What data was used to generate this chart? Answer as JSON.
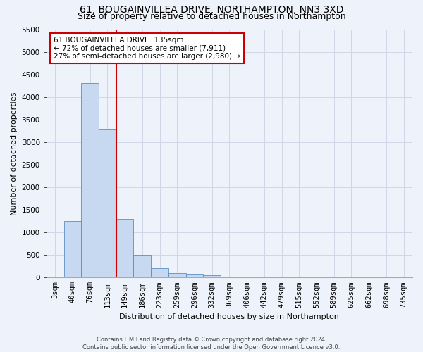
{
  "title": "61, BOUGAINVILLEA DRIVE, NORTHAMPTON, NN3 3XD",
  "subtitle": "Size of property relative to detached houses in Northampton",
  "xlabel": "Distribution of detached houses by size in Northampton",
  "ylabel": "Number of detached properties",
  "footer_line1": "Contains HM Land Registry data © Crown copyright and database right 2024.",
  "footer_line2": "Contains public sector information licensed under the Open Government Licence v3.0.",
  "bin_labels": [
    "3sqm",
    "40sqm",
    "76sqm",
    "113sqm",
    "149sqm",
    "186sqm",
    "223sqm",
    "259sqm",
    "296sqm",
    "332sqm",
    "369sqm",
    "406sqm",
    "442sqm",
    "479sqm",
    "515sqm",
    "552sqm",
    "589sqm",
    "625sqm",
    "662sqm",
    "698sqm",
    "735sqm"
  ],
  "bar_values": [
    0,
    1250,
    4300,
    3300,
    1300,
    500,
    200,
    100,
    75,
    50,
    0,
    0,
    0,
    0,
    0,
    0,
    0,
    0,
    0,
    0,
    0
  ],
  "bar_color": "#c6d9f0",
  "bar_edge_color": "#5b8dc8",
  "red_line_color": "#cc0000",
  "annotation_line1": "61 BOUGAINVILLEA DRIVE: 135sqm",
  "annotation_line2": "← 72% of detached houses are smaller (7,911)",
  "annotation_line3": "27% of semi-detached houses are larger (2,980) →",
  "annotation_box_color": "#ffffff",
  "annotation_box_edge": "#cc0000",
  "ylim_max": 5500,
  "yticks": [
    0,
    500,
    1000,
    1500,
    2000,
    2500,
    3000,
    3500,
    4000,
    4500,
    5000,
    5500
  ],
  "grid_color": "#d0d8e8",
  "background_color": "#eef2fa",
  "title_fontsize": 10,
  "subtitle_fontsize": 9,
  "axis_label_fontsize": 8,
  "tick_fontsize": 7.5,
  "red_line_x": 3.5
}
